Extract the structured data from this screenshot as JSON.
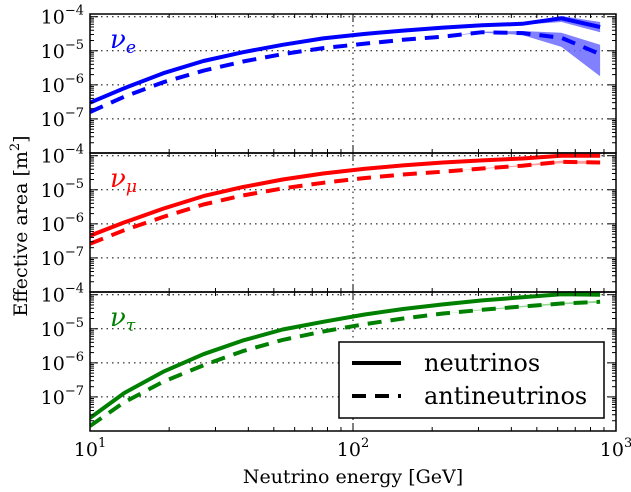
{
  "figure": {
    "xlabel": "Neutrino energy [GeV]",
    "ylabel": "Effective area [m²]"
  },
  "legend": {
    "entries": [
      {
        "label": "neutrinos",
        "style": "solid"
      },
      {
        "label": "antineutrinos",
        "style": "dashed"
      }
    ]
  },
  "chart_data": [
    {
      "type": "line",
      "panel": "top",
      "title": "",
      "flavor_label": {
        "base": "ν",
        "sub": "e"
      },
      "color": "#0000ff",
      "band_color": "#6b6bff",
      "xlabel": "",
      "ylabel": "",
      "xscale": "log",
      "yscale": "log",
      "xlim": [
        10,
        1000
      ],
      "ylim": [
        1e-08,
        0.00012
      ],
      "x_ticks": [
        10,
        100,
        1000
      ],
      "x_tick_labels": [
        "10^1",
        "10^2",
        "10^3"
      ],
      "y_ticks": [
        1e-07,
        1e-06,
        1e-05,
        0.0001
      ],
      "y_tick_labels": [
        "10^-7",
        "10^-6",
        "10^-5",
        "10^-4"
      ],
      "grid": true,
      "series": [
        {
          "name": "neutrinos",
          "style": "solid",
          "x": [
            10,
            13.5,
            19,
            27,
            38,
            54,
            77,
            110,
            155,
            220,
            310,
            440,
            620,
            870
          ],
          "y": [
            3e-07,
            8e-07,
            2.2e-06,
            5e-06,
            9e-06,
            1.5e-05,
            2.3e-05,
            3.1e-05,
            3.9e-05,
            4.8e-05,
            5.6e-05,
            6.2e-05,
            9e-05,
            5e-05
          ],
          "band_lower": [
            3e-07,
            8e-07,
            2.2e-06,
            5e-06,
            9e-06,
            1.5e-05,
            2.3e-05,
            3.1e-05,
            3.9e-05,
            4.8e-05,
            5.6e-05,
            5.8e-05,
            7e-05,
            3.5e-05
          ],
          "band_upper": [
            3e-07,
            8e-07,
            2.2e-06,
            5e-06,
            9e-06,
            1.5e-05,
            2.3e-05,
            3.1e-05,
            3.9e-05,
            4.8e-05,
            5.6e-05,
            6.8e-05,
            0.000105,
            7e-05
          ]
        },
        {
          "name": "antineutrinos",
          "style": "dashed",
          "x": [
            10,
            13.5,
            19,
            27,
            38,
            54,
            77,
            110,
            155,
            220,
            310,
            440,
            620,
            870
          ],
          "y": [
            1.6e-07,
            4.5e-07,
            1.2e-06,
            2.6e-06,
            4.8e-06,
            8e-06,
            1.2e-05,
            1.6e-05,
            2.1e-05,
            2.6e-05,
            3.5e-05,
            3.3e-05,
            2.4e-05,
            8e-06
          ],
          "band_lower": [
            1.6e-07,
            4.5e-07,
            1.2e-06,
            2.6e-06,
            4.8e-06,
            8e-06,
            1.2e-05,
            1.6e-05,
            2.1e-05,
            2.6e-05,
            3.4e-05,
            2.9e-05,
            1.3e-05,
            1.8e-06
          ],
          "band_upper": [
            1.6e-07,
            4.5e-07,
            1.2e-06,
            2.6e-06,
            4.8e-06,
            8e-06,
            1.2e-05,
            1.6e-05,
            2.1e-05,
            2.6e-05,
            3.6e-05,
            3.8e-05,
            3.4e-05,
            1.5e-05
          ]
        }
      ]
    },
    {
      "type": "line",
      "panel": "middle",
      "title": "",
      "flavor_label": {
        "base": "ν",
        "sub": "μ"
      },
      "color": "#ff0000",
      "band_color": "#ff8a8a",
      "xlabel": "",
      "ylabel": "",
      "xscale": "log",
      "yscale": "log",
      "xlim": [
        10,
        1000
      ],
      "ylim": [
        1e-08,
        0.00012
      ],
      "x_ticks": [
        10,
        100,
        1000
      ],
      "x_tick_labels": [
        "10^1",
        "10^2",
        "10^3"
      ],
      "y_ticks": [
        1e-07,
        1e-06,
        1e-05,
        0.0001
      ],
      "y_tick_labels": [
        "10^-7",
        "10^-6",
        "10^-5",
        "10^-4"
      ],
      "grid": true,
      "series": [
        {
          "name": "neutrinos",
          "style": "solid",
          "x": [
            10,
            13.5,
            19,
            27,
            38,
            54,
            77,
            110,
            155,
            220,
            310,
            440,
            620,
            870
          ],
          "y": [
            4.5e-07,
            1.1e-06,
            2.8e-06,
            6.5e-06,
            1.2e-05,
            2e-05,
            3e-05,
            4.1e-05,
            5.2e-05,
            6.3e-05,
            7.3e-05,
            8.3e-05,
            0.0001,
            0.0001
          ],
          "band_lower": [
            4.5e-07,
            1.1e-06,
            2.8e-06,
            6.5e-06,
            1.2e-05,
            2e-05,
            3e-05,
            4.1e-05,
            5.2e-05,
            6.3e-05,
            7.3e-05,
            8.3e-05,
            9.6e-05,
            9.5e-05
          ],
          "band_upper": [
            4.5e-07,
            1.1e-06,
            2.8e-06,
            6.5e-06,
            1.2e-05,
            2e-05,
            3e-05,
            4.1e-05,
            5.2e-05,
            6.3e-05,
            7.3e-05,
            8.3e-05,
            0.000104,
            0.000105
          ]
        },
        {
          "name": "antineutrinos",
          "style": "dashed",
          "x": [
            10,
            13.5,
            19,
            27,
            38,
            54,
            77,
            110,
            155,
            220,
            310,
            440,
            620,
            870
          ],
          "y": [
            2.6e-07,
            6.5e-07,
            1.6e-06,
            3.7e-06,
            6.8e-06,
            1.1e-05,
            1.6e-05,
            2.2e-05,
            2.8e-05,
            3.4e-05,
            4.2e-05,
            5.1e-05,
            6.6e-05,
            6.3e-05
          ],
          "band_lower": [
            2.6e-07,
            6.5e-07,
            1.6e-06,
            3.7e-06,
            6.8e-06,
            1.1e-05,
            1.6e-05,
            2.2e-05,
            2.8e-05,
            3.4e-05,
            4.1e-05,
            4.9e-05,
            6e-05,
            5.6e-05
          ],
          "band_upper": [
            2.6e-07,
            6.5e-07,
            1.6e-06,
            3.7e-06,
            6.8e-06,
            1.1e-05,
            1.6e-05,
            2.2e-05,
            2.8e-05,
            3.4e-05,
            4.3e-05,
            5.3e-05,
            7.2e-05,
            7e-05
          ]
        }
      ]
    },
    {
      "type": "line",
      "panel": "bottom",
      "title": "",
      "flavor_label": {
        "base": "ν",
        "sub": "τ"
      },
      "color": "#008000",
      "band_color": "#7fd07f",
      "xlabel": "Neutrino energy [GeV]",
      "ylabel": "",
      "xscale": "log",
      "yscale": "log",
      "xlim": [
        10,
        1000
      ],
      "ylim": [
        1e-08,
        0.00012
      ],
      "x_ticks": [
        10,
        100,
        1000
      ],
      "x_tick_labels": [
        "10^1",
        "10^2",
        "10^3"
      ],
      "y_ticks": [
        1e-07,
        1e-06,
        1e-05,
        0.0001
      ],
      "y_tick_labels": [
        "10^-7",
        "10^-6",
        "10^-5",
        "10^-4"
      ],
      "grid": true,
      "legend_position": "lower-right",
      "series": [
        {
          "name": "neutrinos",
          "style": "solid",
          "x": [
            10,
            13.5,
            19,
            27,
            38,
            54,
            77,
            110,
            155,
            220,
            310,
            440,
            620,
            870
          ],
          "y": [
            2.4e-08,
            1.3e-07,
            5.5e-07,
            1.8e-06,
            4.5e-06,
            9.5e-06,
            1.6e-05,
            2.6e-05,
            3.8e-05,
            5.2e-05,
            6.8e-05,
            8.4e-05,
            0.000103,
            0.0001
          ],
          "band_lower": [
            2.4e-08,
            1.3e-07,
            5.5e-07,
            1.8e-06,
            4.5e-06,
            9.5e-06,
            1.6e-05,
            2.6e-05,
            3.8e-05,
            5.2e-05,
            6.8e-05,
            8.2e-05,
            9.8e-05,
            9.6e-05
          ],
          "band_upper": [
            2.4e-08,
            1.3e-07,
            5.5e-07,
            1.8e-06,
            4.5e-06,
            9.5e-06,
            1.6e-05,
            2.6e-05,
            3.8e-05,
            5.2e-05,
            6.8e-05,
            8.6e-05,
            0.000107,
            0.000105
          ]
        },
        {
          "name": "antineutrinos",
          "style": "dashed",
          "x": [
            10,
            13.5,
            19,
            27,
            38,
            54,
            77,
            110,
            155,
            220,
            310,
            440,
            620,
            870
          ],
          "y": [
            1.4e-08,
            7e-08,
            2.8e-07,
            8.5e-07,
            2.2e-06,
            4.7e-06,
            8.3e-06,
            1.35e-05,
            2e-05,
            2.8e-05,
            3.6e-05,
            4.5e-05,
            5.5e-05,
            6.2e-05
          ],
          "band_lower": [
            1.4e-08,
            7e-08,
            2.8e-07,
            8.5e-07,
            2.2e-06,
            4.7e-06,
            8.3e-06,
            1.35e-05,
            2e-05,
            2.8e-05,
            3.5e-05,
            4.3e-05,
            5.2e-05,
            5.8e-05
          ],
          "band_upper": [
            1.4e-08,
            7e-08,
            2.8e-07,
            8.5e-07,
            2.2e-06,
            4.7e-06,
            8.3e-06,
            1.35e-05,
            2e-05,
            2.8e-05,
            3.7e-05,
            4.7e-05,
            5.8e-05,
            6.6e-05
          ]
        }
      ]
    }
  ]
}
